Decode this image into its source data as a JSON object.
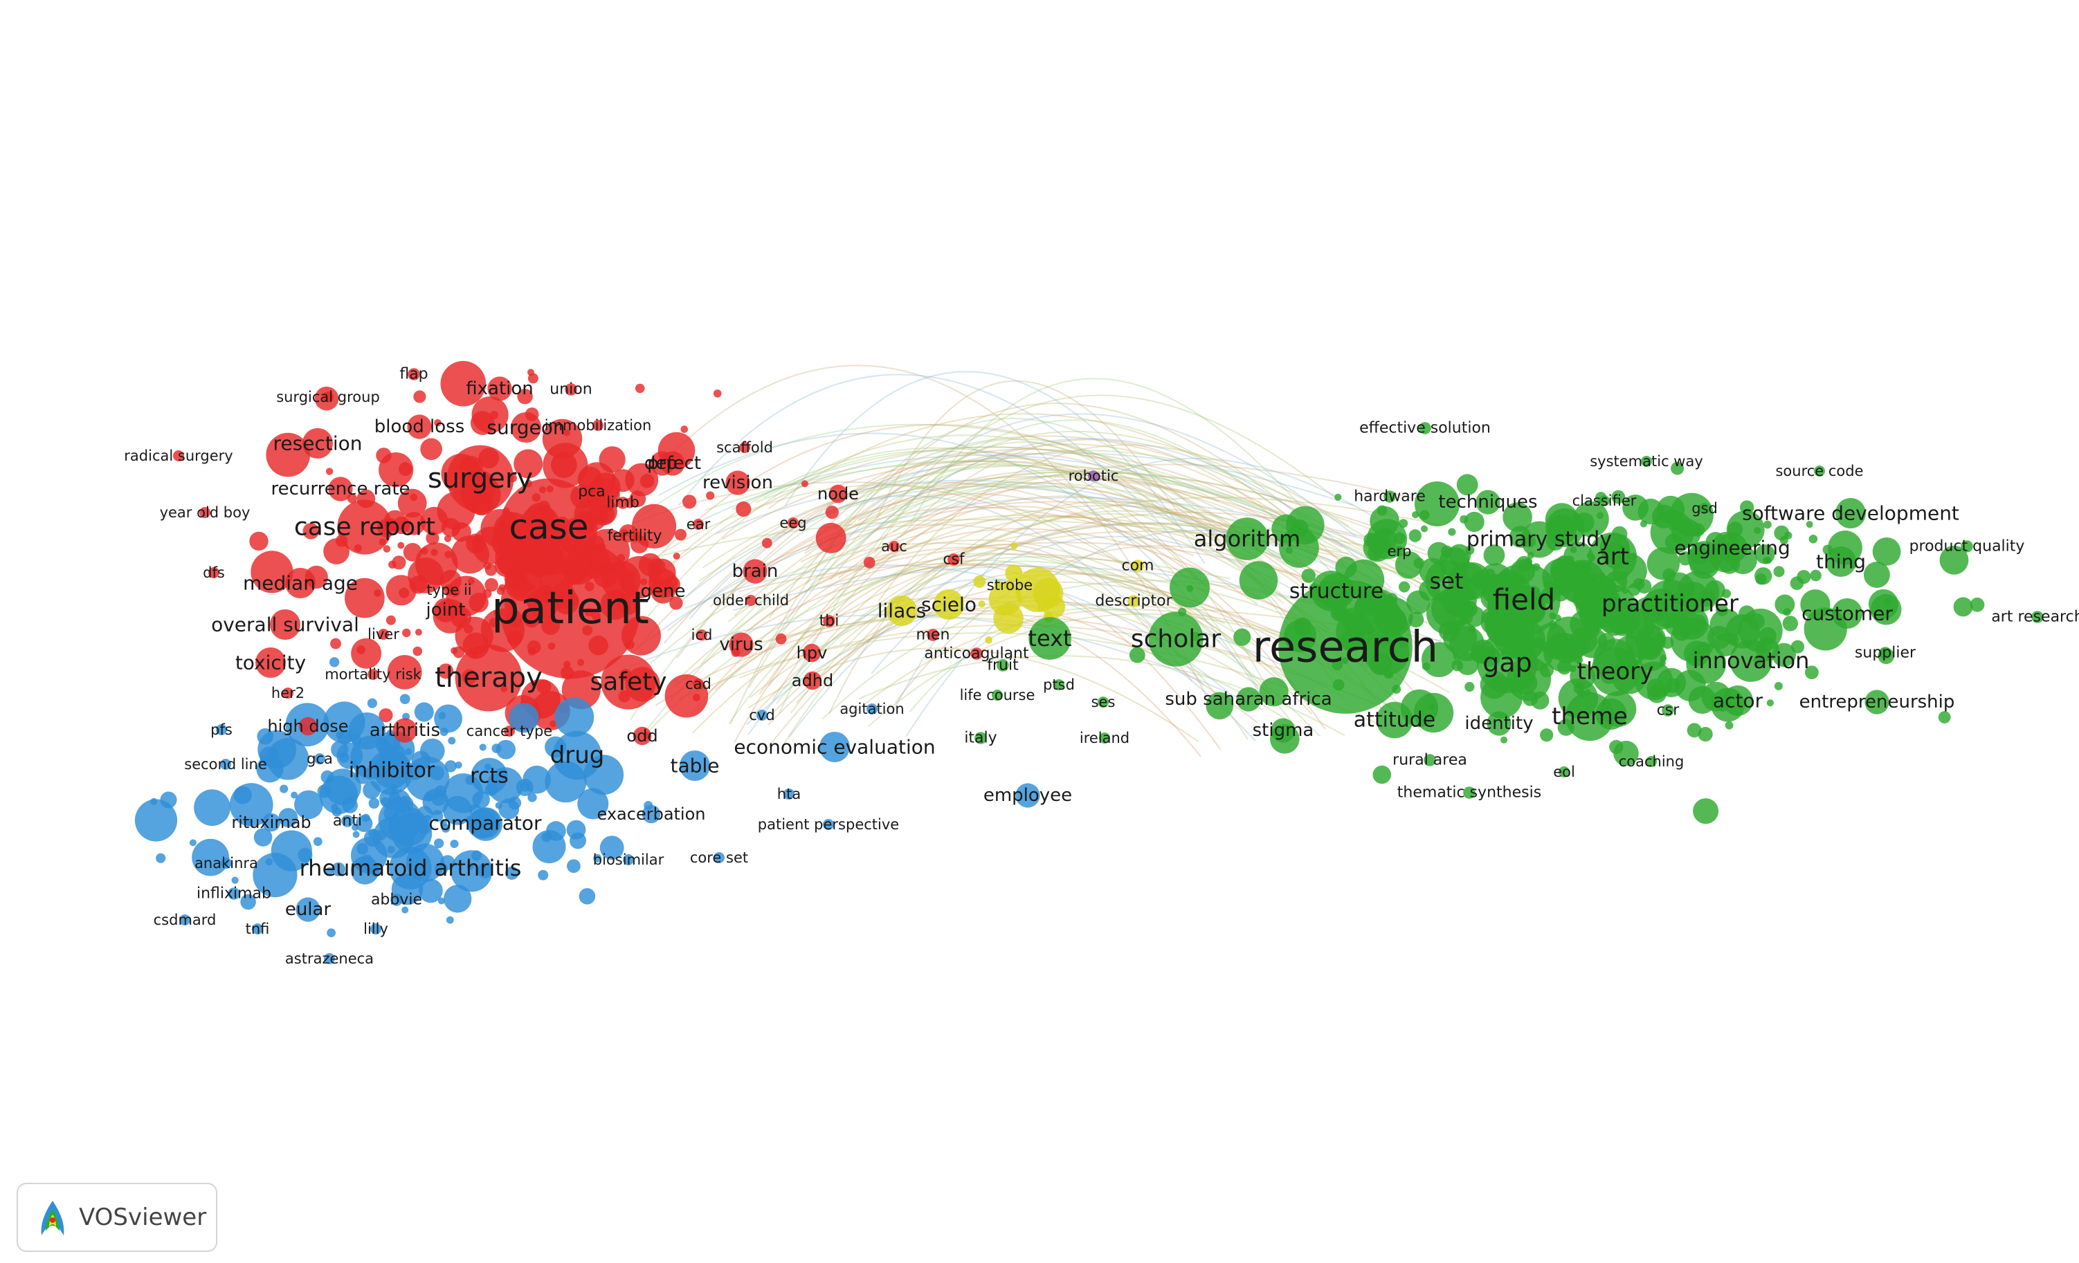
{
  "app": {
    "name": "VOSviewer"
  },
  "clusters": {
    "red": {
      "color": "#e8292a"
    },
    "blue": {
      "color": "#2f8fd8"
    },
    "green": {
      "color": "#2eaa2e"
    },
    "yellow": {
      "color": "#d8d41c"
    },
    "purple": {
      "color": "#9b59b6"
    }
  },
  "labels": [
    {
      "t": "patient",
      "c": "red",
      "s": 64
    },
    {
      "t": "case",
      "c": "red",
      "s": 50
    },
    {
      "t": "surgery",
      "c": "red",
      "s": 40
    },
    {
      "t": "case report",
      "c": "red",
      "s": 36
    },
    {
      "t": "therapy",
      "c": "red",
      "s": 40
    },
    {
      "t": "safety",
      "c": "red",
      "s": 36
    },
    {
      "t": "resection",
      "c": "red",
      "s": 28
    },
    {
      "t": "blood loss",
      "c": "red",
      "s": 26
    },
    {
      "t": "surgeon",
      "c": "red",
      "s": 28
    },
    {
      "t": "fixation",
      "c": "red",
      "s": 26
    },
    {
      "t": "flap",
      "c": "red",
      "s": 22
    },
    {
      "t": "union",
      "c": "red",
      "s": 22
    },
    {
      "t": "surgical group",
      "c": "red",
      "s": 21
    },
    {
      "t": "radical surgery",
      "c": "red",
      "s": 21
    },
    {
      "t": "recurrence rate",
      "c": "red",
      "s": 26
    },
    {
      "t": "immobilization",
      "c": "red",
      "s": 21
    },
    {
      "t": "scaffold",
      "c": "red",
      "s": 21
    },
    {
      "t": "prp",
      "c": "red",
      "s": 26
    },
    {
      "t": "defect",
      "c": "red",
      "s": 26
    },
    {
      "t": "pca",
      "c": "red",
      "s": 22
    },
    {
      "t": "revision",
      "c": "red",
      "s": 26
    },
    {
      "t": "limb",
      "c": "red",
      "s": 22
    },
    {
      "t": "year old boy",
      "c": "red",
      "s": 21
    },
    {
      "t": "fertility",
      "c": "red",
      "s": 22
    },
    {
      "t": "ear",
      "c": "red",
      "s": 21
    },
    {
      "t": "eeg",
      "c": "red",
      "s": 21
    },
    {
      "t": "node",
      "c": "red",
      "s": 24
    },
    {
      "t": "dfs",
      "c": "red",
      "s": 21
    },
    {
      "t": "median age",
      "c": "red",
      "s": 28
    },
    {
      "t": "type ii",
      "c": "red",
      "s": 21
    },
    {
      "t": "brain",
      "c": "red",
      "s": 26
    },
    {
      "t": "gene",
      "c": "red",
      "s": 26
    },
    {
      "t": "older child",
      "c": "red",
      "s": 21
    },
    {
      "t": "auc",
      "c": "red",
      "s": 21
    },
    {
      "t": "csf",
      "c": "red",
      "s": 22
    },
    {
      "t": "joint",
      "c": "red",
      "s": 26
    },
    {
      "t": "overall survival",
      "c": "red",
      "s": 28
    },
    {
      "t": "liver",
      "c": "red",
      "s": 21
    },
    {
      "t": "icd",
      "c": "red",
      "s": 21
    },
    {
      "t": "virus",
      "c": "red",
      "s": 26
    },
    {
      "t": "tbi",
      "c": "red",
      "s": 22
    },
    {
      "t": "men",
      "c": "red",
      "s": 22
    },
    {
      "t": "hpv",
      "c": "red",
      "s": 24
    },
    {
      "t": "anticoagulant",
      "c": "red",
      "s": 22
    },
    {
      "t": "toxicity",
      "c": "red",
      "s": 28
    },
    {
      "t": "mortality risk",
      "c": "red",
      "s": 21
    },
    {
      "t": "adhd",
      "c": "red",
      "s": 24
    },
    {
      "t": "cad",
      "c": "red",
      "s": 21
    },
    {
      "t": "her2",
      "c": "red",
      "s": 21
    },
    {
      "t": "arthritis",
      "c": "red",
      "s": 26
    },
    {
      "t": "cancer type",
      "c": "red",
      "s": 21
    },
    {
      "t": "odd",
      "c": "red",
      "s": 24
    },
    {
      "t": "high dose",
      "c": "red",
      "s": 24
    },
    {
      "t": "cvd",
      "c": "blue",
      "s": 21
    },
    {
      "t": "agitation",
      "c": "blue",
      "s": 21
    },
    {
      "t": "pfs",
      "c": "blue",
      "s": 21
    },
    {
      "t": "drug",
      "c": "blue",
      "s": 34
    },
    {
      "t": "inhibitor",
      "c": "blue",
      "s": 30
    },
    {
      "t": "rcts",
      "c": "blue",
      "s": 30
    },
    {
      "t": "table",
      "c": "blue",
      "s": 28
    },
    {
      "t": "economic evaluation",
      "c": "blue",
      "s": 28
    },
    {
      "t": "second line",
      "c": "blue",
      "s": 21
    },
    {
      "t": "gca",
      "c": "blue",
      "s": 21
    },
    {
      "t": "hta",
      "c": "blue",
      "s": 21
    },
    {
      "t": "exacerbation",
      "c": "blue",
      "s": 24
    },
    {
      "t": "comparator",
      "c": "blue",
      "s": 28
    },
    {
      "t": "rituximab",
      "c": "blue",
      "s": 24
    },
    {
      "t": "anti",
      "c": "blue",
      "s": 22
    },
    {
      "t": "patient perspective",
      "c": "blue",
      "s": 21
    },
    {
      "t": "anakinra",
      "c": "blue",
      "s": 21
    },
    {
      "t": "rheumatoid arthritis",
      "c": "blue",
      "s": 32
    },
    {
      "t": "biosimilar",
      "c": "blue",
      "s": 21
    },
    {
      "t": "core set",
      "c": "blue",
      "s": 21
    },
    {
      "t": "infliximab",
      "c": "blue",
      "s": 22
    },
    {
      "t": "eular",
      "c": "blue",
      "s": 26
    },
    {
      "t": "abbvie",
      "c": "blue",
      "s": 22
    },
    {
      "t": "csdmard",
      "c": "blue",
      "s": 21
    },
    {
      "t": "tnfi",
      "c": "blue",
      "s": 21
    },
    {
      "t": "lilly",
      "c": "blue",
      "s": 21
    },
    {
      "t": "astrazeneca",
      "c": "blue",
      "s": 21
    },
    {
      "t": "lilacs",
      "c": "yellow",
      "s": 28
    },
    {
      "t": "scielo",
      "c": "yellow",
      "s": 28
    },
    {
      "t": "strobe",
      "c": "yellow",
      "s": 21
    },
    {
      "t": "descriptor",
      "c": "yellow",
      "s": 22
    },
    {
      "t": "com",
      "c": "yellow",
      "s": 22
    },
    {
      "t": "text",
      "c": "green",
      "s": 32
    },
    {
      "t": "fruit",
      "c": "green",
      "s": 22
    },
    {
      "t": "life course",
      "c": "green",
      "s": 21
    },
    {
      "t": "ptsd",
      "c": "green",
      "s": 21
    },
    {
      "t": "ses",
      "c": "green",
      "s": 21
    },
    {
      "t": "italy",
      "c": "green",
      "s": 22
    },
    {
      "t": "ireland",
      "c": "green",
      "s": 21
    },
    {
      "t": "employee",
      "c": "blue",
      "s": 26
    },
    {
      "t": "robotic",
      "c": "purple",
      "s": 21
    },
    {
      "t": "research",
      "c": "green",
      "s": 62
    },
    {
      "t": "scholar",
      "c": "green",
      "s": 36
    },
    {
      "t": "algorithm",
      "c": "green",
      "s": 32
    },
    {
      "t": "structure",
      "c": "green",
      "s": 30
    },
    {
      "t": "field",
      "c": "green",
      "s": 42
    },
    {
      "t": "set",
      "c": "green",
      "s": 32
    },
    {
      "t": "primary study",
      "c": "green",
      "s": 30
    },
    {
      "t": "techniques",
      "c": "green",
      "s": 26
    },
    {
      "t": "hardware",
      "c": "green",
      "s": 22
    },
    {
      "t": "erp",
      "c": "green",
      "s": 21
    },
    {
      "t": "effective solution",
      "c": "green",
      "s": 22
    },
    {
      "t": "systematic way",
      "c": "green",
      "s": 21
    },
    {
      "t": "classifier",
      "c": "green",
      "s": 21
    },
    {
      "t": "gsd",
      "c": "green",
      "s": 21
    },
    {
      "t": "source code",
      "c": "green",
      "s": 21
    },
    {
      "t": "software development",
      "c": "green",
      "s": 28
    },
    {
      "t": "product quality",
      "c": "green",
      "s": 22
    },
    {
      "t": "art research",
      "c": "green",
      "s": 22
    },
    {
      "t": "art",
      "c": "green",
      "s": 34
    },
    {
      "t": "engineering",
      "c": "green",
      "s": 28
    },
    {
      "t": "thing",
      "c": "green",
      "s": 28
    },
    {
      "t": "practitioner",
      "c": "green",
      "s": 34
    },
    {
      "t": "customer",
      "c": "green",
      "s": 28
    },
    {
      "t": "supplier",
      "c": "green",
      "s": 22
    },
    {
      "t": "innovation",
      "c": "green",
      "s": 32
    },
    {
      "t": "gap",
      "c": "green",
      "s": 38
    },
    {
      "t": "theory",
      "c": "green",
      "s": 34
    },
    {
      "t": "actor",
      "c": "green",
      "s": 28
    },
    {
      "t": "entrepreneurship",
      "c": "green",
      "s": 26
    },
    {
      "t": "sub saharan africa",
      "c": "green",
      "s": 26
    },
    {
      "t": "stigma",
      "c": "green",
      "s": 26
    },
    {
      "t": "attitude",
      "c": "green",
      "s": 30
    },
    {
      "t": "identity",
      "c": "green",
      "s": 26
    },
    {
      "t": "theme",
      "c": "green",
      "s": 34
    },
    {
      "t": "csr",
      "c": "green",
      "s": 22
    },
    {
      "t": "rural area",
      "c": "green",
      "s": 22
    },
    {
      "t": "coaching",
      "c": "green",
      "s": 21
    },
    {
      "t": "eol",
      "c": "green",
      "s": 21
    },
    {
      "t": "thematic synthesis",
      "c": "green",
      "s": 22
    }
  ]
}
